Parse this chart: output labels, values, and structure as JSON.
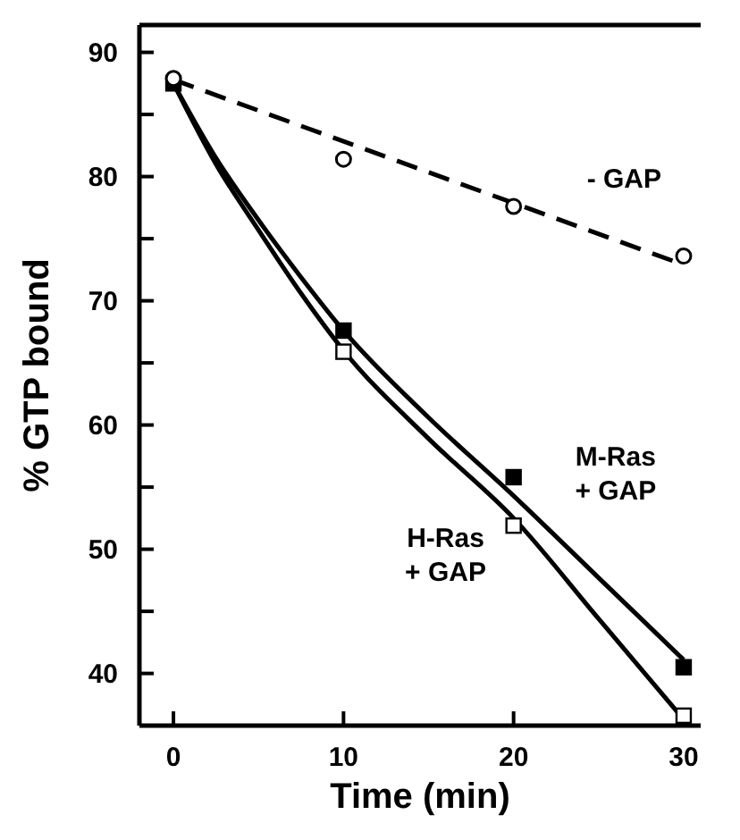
{
  "chart_data": {
    "type": "scatter",
    "xlabel": "Time (min)",
    "ylabel": "% GTP bound",
    "xlim": [
      -2,
      31
    ],
    "xticks": [
      0,
      10,
      20,
      30
    ],
    "ylim": [
      35.8,
      92.2
    ],
    "yticks": [
      40,
      {
        "value": 45,
        "label": null
      },
      50,
      {
        "value": 55,
        "label": null
      },
      60,
      {
        "value": 65,
        "label": null
      },
      70,
      {
        "value": 75,
        "label": null
      },
      80,
      {
        "value": 85,
        "label": null
      },
      90
    ],
    "grid": false,
    "legend": false,
    "series": [
      {
        "type": "line",
        "color": "#000000",
        "line_style": "dashed",
        "marker": "none",
        "x": [
          0,
          30
        ],
        "values": [
          87.8,
          72.9
        ]
      },
      {
        "type": "line",
        "color": "#000000",
        "line_style": "solid",
        "marker": "none",
        "x": [
          0,
          2.5,
          5,
          7.5,
          10,
          15,
          20,
          25,
          30
        ],
        "values": [
          87.5,
          81.5,
          76.5,
          71.9,
          67.6,
          60.6,
          54.3,
          47.7,
          41.1
        ]
      },
      {
        "type": "line",
        "color": "#000000",
        "line_style": "solid",
        "marker": "none",
        "x": [
          0,
          2.5,
          5,
          7.5,
          10,
          15,
          20,
          25,
          30
        ],
        "values": [
          87.5,
          81.0,
          75.7,
          70.6,
          66.0,
          58.9,
          52.5,
          44.4,
          36.3
        ]
      },
      {
        "color": "#000000",
        "marker": "square",
        "x": [
          0,
          10,
          20,
          30
        ],
        "values": [
          87.5,
          67.6,
          55.8,
          40.5
        ]
      },
      {
        "color": "#ffffff",
        "marker": "square",
        "x": [
          10,
          20,
          30
        ],
        "values": [
          65.9,
          51.9,
          36.6
        ]
      },
      {
        "color": "#ffffff",
        "marker": "circle",
        "x": [
          0,
          10,
          20,
          30
        ],
        "values": [
          87.9,
          81.4,
          77.6,
          73.6
        ]
      }
    ],
    "annotations": [
      "- GAP",
      "M-Ras\n+ GAP",
      "H-Ras\n+ GAP"
    ]
  }
}
